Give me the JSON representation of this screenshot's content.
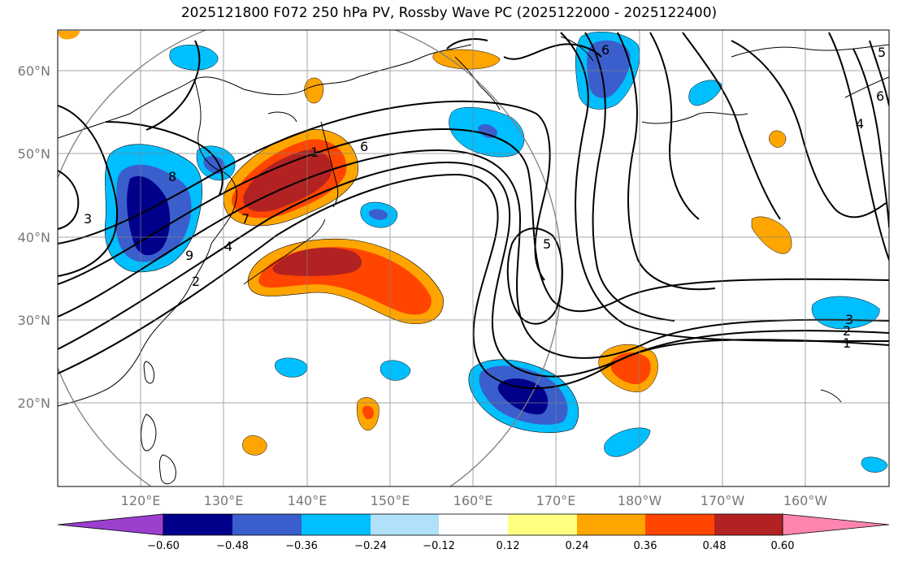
{
  "title": "2025121800 F072 250 hPa PV, Rossby Wave PC (2025122000 - 2025122400)",
  "lat_labels": [
    "60°N",
    "50°N",
    "40°N",
    "30°N",
    "20°N"
  ],
  "lon_labels": [
    "120°E",
    "130°E",
    "140°E",
    "150°E",
    "160°E",
    "170°E",
    "180°W",
    "170°W",
    "160°W"
  ],
  "colorbar": {
    "colors": [
      "#9b3fcf",
      "#00008b",
      "#3a5fcd",
      "#00bfff",
      "#b0e0fa",
      "#ffffff",
      "#ffff80",
      "#ffa500",
      "#ff4500",
      "#b22222",
      "#ff85b0"
    ],
    "tick_labels": [
      "−0.60",
      "−0.48",
      "−0.36",
      "−0.24",
      "−0.12",
      "0.12",
      "0.24",
      "0.36",
      "0.48",
      "0.60"
    ]
  },
  "contour_labels": [
    "1",
    "2",
    "3",
    "4",
    "5",
    "6",
    "7",
    "8",
    "9",
    "1",
    "2",
    "3",
    "6",
    "4",
    "6",
    "5"
  ]
}
